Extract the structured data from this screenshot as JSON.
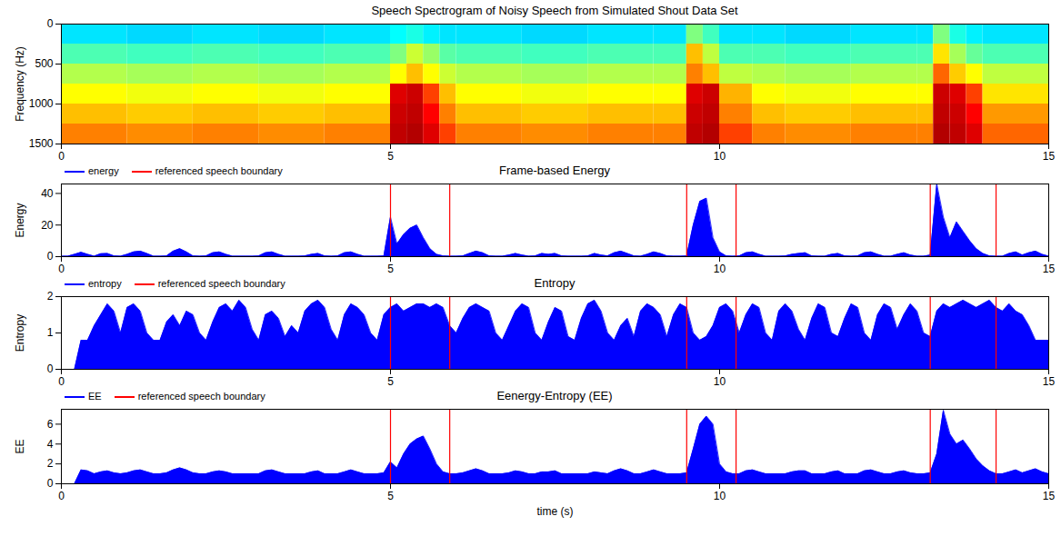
{
  "chart_data": [
    {
      "type": "heatmap",
      "title": "Speech Spectrogram of Noisy Speech from Simulated Shout Data Set",
      "ylabel": "Frequency (Hz)",
      "x": [
        0,
        1,
        2,
        3,
        4,
        5,
        5.25,
        5.5,
        5.75,
        6,
        7,
        8,
        9,
        9.5,
        9.75,
        10,
        10.5,
        11,
        12,
        13,
        13.25,
        13.5,
        13.75,
        14
      ],
      "y": [
        0,
        250,
        500,
        750,
        1000,
        1250
      ],
      "cells": [
        [
          3.8,
          3.7,
          3.8,
          3.7,
          3.8,
          4.0,
          4.2,
          3.9,
          3.8,
          3.8,
          3.7,
          3.8,
          3.8,
          5.0,
          4.5,
          3.8,
          3.8,
          3.7,
          3.8,
          3.8,
          5.0,
          4.2,
          3.9,
          3.8
        ],
        [
          4.6,
          4.5,
          4.6,
          4.5,
          4.6,
          5.0,
          5.6,
          5.2,
          4.7,
          4.6,
          4.5,
          4.6,
          4.6,
          6.5,
          5.5,
          4.6,
          4.6,
          4.5,
          4.6,
          4.6,
          6.2,
          5.3,
          4.8,
          4.6
        ],
        [
          5.4,
          5.3,
          5.4,
          5.3,
          5.4,
          6.0,
          6.5,
          6.0,
          5.6,
          5.4,
          5.3,
          5.4,
          5.4,
          7.0,
          6.5,
          5.5,
          5.4,
          5.3,
          5.4,
          5.4,
          7.2,
          6.4,
          6.0,
          5.5
        ],
        [
          6.0,
          5.9,
          6.0,
          5.9,
          6.0,
          8.5,
          8.8,
          7.5,
          6.5,
          6.0,
          5.9,
          6.0,
          6.0,
          8.5,
          8.8,
          6.6,
          6.0,
          5.9,
          6.0,
          6.0,
          8.8,
          8.5,
          7.5,
          6.2
        ],
        [
          6.5,
          6.4,
          6.5,
          6.4,
          6.5,
          8.8,
          9.0,
          8.0,
          7.0,
          6.5,
          6.4,
          6.5,
          6.5,
          8.8,
          9.0,
          7.0,
          6.5,
          6.4,
          6.5,
          6.5,
          9.0,
          8.8,
          8.0,
          6.8
        ],
        [
          7.0,
          6.9,
          7.0,
          6.9,
          7.0,
          9.0,
          9.2,
          8.5,
          7.5,
          7.0,
          6.9,
          7.0,
          7.0,
          9.0,
          9.2,
          7.5,
          7.0,
          6.9,
          7.0,
          7.0,
          9.2,
          9.0,
          8.5,
          7.2
        ]
      ],
      "clim": [
        0,
        10
      ],
      "xlim": [
        0,
        15
      ],
      "xticks": [
        0,
        5,
        10,
        15
      ],
      "ylim": [
        1500,
        0
      ],
      "yticks": [
        0,
        500,
        1000,
        1500
      ]
    },
    {
      "type": "area",
      "title": "Frame-based Energy",
      "ylabel": "Energy",
      "legend": "above",
      "x": [
        0,
        0.1,
        0.2,
        0.3,
        0.4,
        0.5,
        0.6,
        0.7,
        0.8,
        0.9,
        1,
        1.1,
        1.2,
        1.3,
        1.4,
        1.5,
        1.6,
        1.7,
        1.8,
        1.9,
        2,
        2.1,
        2.2,
        2.3,
        2.4,
        2.5,
        2.6,
        2.7,
        2.8,
        2.9,
        3,
        3.1,
        3.2,
        3.3,
        3.4,
        3.5,
        3.6,
        3.7,
        3.8,
        3.9,
        4,
        4.1,
        4.2,
        4.3,
        4.4,
        4.5,
        4.6,
        4.7,
        4.8,
        4.9,
        5,
        5.1,
        5.2,
        5.3,
        5.4,
        5.5,
        5.6,
        5.7,
        5.8,
        5.9,
        6,
        6.1,
        6.2,
        6.3,
        6.4,
        6.5,
        6.6,
        6.7,
        6.8,
        6.9,
        7,
        7.1,
        7.2,
        7.3,
        7.4,
        7.5,
        7.6,
        7.7,
        7.8,
        7.9,
        8,
        8.1,
        8.2,
        8.3,
        8.4,
        8.5,
        8.6,
        8.7,
        8.8,
        8.9,
        9,
        9.1,
        9.2,
        9.3,
        9.4,
        9.5,
        9.6,
        9.7,
        9.8,
        9.9,
        10,
        10.1,
        10.2,
        10.3,
        10.4,
        10.5,
        10.6,
        10.7,
        10.8,
        10.9,
        11,
        11.1,
        11.2,
        11.3,
        11.4,
        11.5,
        11.6,
        11.7,
        11.8,
        11.9,
        12,
        12.1,
        12.2,
        12.3,
        12.4,
        12.5,
        12.6,
        12.7,
        12.8,
        12.9,
        13,
        13.1,
        13.2,
        13.3,
        13.4,
        13.5,
        13.6,
        13.7,
        13.8,
        13.9,
        14,
        14.1,
        14.2,
        14.3,
        14.4,
        14.5,
        14.6,
        14.7,
        14.8,
        14.9,
        15
      ],
      "series": [
        {
          "name": "energy",
          "color": "#0000ff",
          "type": "area",
          "values": [
            0.3,
            0.3,
            1.5,
            2.8,
            1.5,
            0.3,
            1.8,
            2.0,
            0.5,
            0.3,
            1.5,
            3.0,
            3.5,
            2.0,
            0.3,
            0.3,
            0.5,
            3.5,
            5.0,
            3.0,
            0.5,
            0.3,
            0.5,
            2.5,
            3.0,
            1.5,
            0.3,
            0.3,
            0.3,
            0.3,
            0.5,
            2.5,
            3.0,
            1.5,
            0.3,
            0.3,
            0.3,
            0.5,
            1.5,
            2.0,
            0.5,
            0.3,
            0.5,
            2.5,
            3.0,
            1.5,
            0.3,
            0.3,
            0.3,
            0.5,
            25.0,
            8.0,
            14.0,
            18.0,
            20.0,
            12.0,
            5.0,
            1.5,
            0.5,
            0.3,
            0.3,
            0.5,
            2.0,
            3.5,
            2.5,
            0.5,
            0.3,
            0.3,
            1.0,
            2.0,
            1.0,
            0.3,
            0.5,
            2.0,
            1.5,
            2.0,
            0.5,
            0.3,
            0.3,
            0.3,
            0.5,
            2.0,
            1.0,
            0.5,
            2.5,
            3.5,
            2.0,
            0.5,
            0.3,
            1.5,
            3.0,
            2.0,
            0.5,
            0.3,
            0.3,
            0.5,
            20.0,
            35.0,
            37.0,
            12.0,
            3.0,
            0.5,
            0.3,
            0.5,
            2.5,
            3.0,
            1.5,
            0.3,
            0.3,
            0.3,
            0.5,
            1.5,
            2.0,
            2.5,
            0.5,
            0.3,
            0.3,
            1.5,
            2.0,
            0.5,
            0.3,
            0.5,
            2.5,
            3.0,
            1.5,
            0.3,
            0.3,
            1.5,
            2.5,
            1.0,
            0.3,
            0.3,
            1.0,
            46.0,
            25.0,
            12.0,
            22.0,
            16.0,
            10.0,
            5.0,
            2.0,
            0.5,
            0.3,
            0.3,
            2.0,
            3.0,
            1.0,
            2.5,
            3.5,
            1.5,
            0.3
          ]
        },
        {
          "name": "referenced speech boundary",
          "color": "#ff0000",
          "type": "rule",
          "x": [
            5.0,
            5.9,
            9.5,
            10.25,
            13.2,
            14.2
          ]
        }
      ],
      "xlim": [
        0,
        15
      ],
      "xticks": [
        0,
        5,
        10,
        15
      ],
      "ylim": [
        0,
        46
      ],
      "yticks": [
        0,
        20,
        40
      ]
    },
    {
      "type": "area",
      "title": "Entropy",
      "ylabel": "Entropy",
      "legend": "above",
      "x": [
        0,
        0.1,
        0.2,
        0.3,
        0.4,
        0.5,
        0.6,
        0.7,
        0.8,
        0.9,
        1,
        1.1,
        1.2,
        1.3,
        1.4,
        1.5,
        1.6,
        1.7,
        1.8,
        1.9,
        2,
        2.1,
        2.2,
        2.3,
        2.4,
        2.5,
        2.6,
        2.7,
        2.8,
        2.9,
        3,
        3.1,
        3.2,
        3.3,
        3.4,
        3.5,
        3.6,
        3.7,
        3.8,
        3.9,
        4,
        4.1,
        4.2,
        4.3,
        4.4,
        4.5,
        4.6,
        4.7,
        4.8,
        4.9,
        5,
        5.1,
        5.2,
        5.3,
        5.4,
        5.5,
        5.6,
        5.7,
        5.8,
        5.9,
        6,
        6.1,
        6.2,
        6.3,
        6.4,
        6.5,
        6.6,
        6.7,
        6.8,
        6.9,
        7,
        7.1,
        7.2,
        7.3,
        7.4,
        7.5,
        7.6,
        7.7,
        7.8,
        7.9,
        8,
        8.1,
        8.2,
        8.3,
        8.4,
        8.5,
        8.6,
        8.7,
        8.8,
        8.9,
        9,
        9.1,
        9.2,
        9.3,
        9.4,
        9.5,
        9.6,
        9.7,
        9.8,
        9.9,
        10,
        10.1,
        10.2,
        10.3,
        10.4,
        10.5,
        10.6,
        10.7,
        10.8,
        10.9,
        11,
        11.1,
        11.2,
        11.3,
        11.4,
        11.5,
        11.6,
        11.7,
        11.8,
        11.9,
        12,
        12.1,
        12.2,
        12.3,
        12.4,
        12.5,
        12.6,
        12.7,
        12.8,
        12.9,
        13,
        13.1,
        13.2,
        13.3,
        13.4,
        13.5,
        13.6,
        13.7,
        13.8,
        13.9,
        14,
        14.1,
        14.2,
        14.3,
        14.4,
        14.5,
        14.6,
        14.7,
        14.8,
        14.9,
        15
      ],
      "series": [
        {
          "name": "entropy",
          "color": "#0000ff",
          "type": "area",
          "values": [
            0,
            0,
            0,
            0.8,
            0.8,
            1.2,
            1.5,
            1.8,
            1.6,
            1.0,
            1.7,
            1.8,
            1.6,
            1.0,
            0.8,
            0.8,
            1.3,
            1.5,
            1.2,
            1.6,
            1.5,
            1.0,
            0.8,
            1.3,
            1.7,
            1.8,
            1.6,
            1.9,
            1.7,
            1.1,
            0.8,
            1.5,
            1.6,
            1.4,
            0.9,
            1.2,
            1.0,
            1.6,
            1.8,
            1.9,
            1.7,
            1.1,
            0.8,
            1.5,
            1.8,
            1.7,
            1.5,
            1.0,
            0.8,
            1.5,
            1.7,
            1.8,
            1.6,
            1.7,
            1.8,
            1.8,
            1.7,
            1.8,
            1.7,
            1.2,
            1.0,
            1.4,
            1.7,
            1.8,
            1.7,
            1.6,
            1.0,
            0.8,
            1.2,
            1.6,
            1.8,
            1.7,
            1.0,
            0.8,
            1.3,
            1.7,
            1.6,
            0.9,
            0.8,
            1.4,
            1.8,
            1.9,
            1.6,
            1.0,
            0.8,
            1.2,
            1.4,
            0.9,
            1.6,
            1.8,
            1.7,
            1.5,
            0.9,
            1.5,
            1.8,
            1.7,
            1.0,
            0.8,
            0.9,
            1.2,
            1.7,
            1.8,
            1.6,
            1.0,
            1.5,
            1.8,
            1.7,
            1.0,
            0.8,
            1.6,
            1.8,
            1.6,
            1.1,
            0.8,
            1.4,
            1.8,
            1.7,
            1.0,
            0.9,
            1.4,
            1.8,
            1.7,
            1.0,
            0.8,
            1.5,
            1.8,
            1.7,
            1.1,
            1.5,
            1.8,
            1.6,
            1.0,
            0.9,
            1.6,
            1.8,
            1.7,
            1.8,
            1.9,
            1.8,
            1.7,
            1.8,
            1.9,
            1.7,
            1.6,
            1.8,
            1.6,
            1.5,
            1.2,
            0.8,
            0.8,
            0.8
          ]
        },
        {
          "name": "referenced speech boundary",
          "color": "#ff0000",
          "type": "rule",
          "x": [
            5.0,
            5.9,
            9.5,
            10.25,
            13.2,
            14.2
          ]
        }
      ],
      "xlim": [
        0,
        15
      ],
      "xticks": [
        0,
        5,
        10,
        15
      ],
      "ylim": [
        0,
        2
      ],
      "yticks": [
        0,
        1,
        2
      ]
    },
    {
      "type": "area",
      "title": "Eenergy-Entropy (EE)",
      "ylabel": "EE",
      "xlabel": "time (s)",
      "legend": "above",
      "x": [
        0,
        0.1,
        0.2,
        0.3,
        0.4,
        0.5,
        0.6,
        0.7,
        0.8,
        0.9,
        1,
        1.1,
        1.2,
        1.3,
        1.4,
        1.5,
        1.6,
        1.7,
        1.8,
        1.9,
        2,
        2.1,
        2.2,
        2.3,
        2.4,
        2.5,
        2.6,
        2.7,
        2.8,
        2.9,
        3,
        3.1,
        3.2,
        3.3,
        3.4,
        3.5,
        3.6,
        3.7,
        3.8,
        3.9,
        4,
        4.1,
        4.2,
        4.3,
        4.4,
        4.5,
        4.6,
        4.7,
        4.8,
        4.9,
        5,
        5.1,
        5.2,
        5.3,
        5.4,
        5.5,
        5.6,
        5.7,
        5.8,
        5.9,
        6,
        6.1,
        6.2,
        6.3,
        6.4,
        6.5,
        6.6,
        6.7,
        6.8,
        6.9,
        7,
        7.1,
        7.2,
        7.3,
        7.4,
        7.5,
        7.6,
        7.7,
        7.8,
        7.9,
        8,
        8.1,
        8.2,
        8.3,
        8.4,
        8.5,
        8.6,
        8.7,
        8.8,
        8.9,
        9,
        9.1,
        9.2,
        9.3,
        9.4,
        9.5,
        9.6,
        9.7,
        9.8,
        9.9,
        10,
        10.1,
        10.2,
        10.3,
        10.4,
        10.5,
        10.6,
        10.7,
        10.8,
        10.9,
        11,
        11.1,
        11.2,
        11.3,
        11.4,
        11.5,
        11.6,
        11.7,
        11.8,
        11.9,
        12,
        12.1,
        12.2,
        12.3,
        12.4,
        12.5,
        12.6,
        12.7,
        12.8,
        12.9,
        13,
        13.1,
        13.2,
        13.3,
        13.4,
        13.5,
        13.6,
        13.7,
        13.8,
        13.9,
        14,
        14.1,
        14.2,
        14.3,
        14.4,
        14.5,
        14.6,
        14.7,
        14.8,
        14.9,
        15
      ],
      "series": [
        {
          "name": "EE",
          "color": "#0000ff",
          "type": "area",
          "values": [
            0,
            0,
            0,
            1.4,
            1.3,
            1.0,
            1.2,
            1.3,
            1.1,
            1.0,
            1.1,
            1.3,
            1.4,
            1.2,
            1.0,
            1.0,
            1.1,
            1.4,
            1.6,
            1.4,
            1.1,
            1.0,
            1.0,
            1.2,
            1.3,
            1.2,
            1.0,
            1.0,
            1.0,
            1.0,
            1.0,
            1.3,
            1.4,
            1.2,
            1.0,
            1.0,
            1.0,
            1.0,
            1.2,
            1.3,
            1.0,
            1.0,
            1.0,
            1.2,
            1.4,
            1.2,
            1.0,
            1.0,
            1.0,
            1.1,
            2.2,
            1.6,
            3.0,
            4.0,
            4.5,
            4.8,
            3.5,
            2.0,
            1.2,
            1.0,
            1.0,
            1.1,
            1.3,
            1.5,
            1.3,
            1.0,
            1.0,
            1.0,
            1.1,
            1.3,
            1.2,
            1.0,
            1.0,
            1.2,
            1.2,
            1.3,
            1.0,
            1.0,
            1.0,
            1.0,
            1.0,
            1.2,
            1.1,
            1.0,
            1.3,
            1.5,
            1.3,
            1.0,
            1.0,
            1.2,
            1.4,
            1.2,
            1.0,
            1.0,
            1.0,
            1.1,
            3.5,
            6.0,
            6.8,
            6.0,
            2.0,
            1.2,
            1.0,
            1.0,
            1.3,
            1.4,
            1.2,
            1.0,
            1.0,
            1.0,
            1.0,
            1.2,
            1.3,
            1.3,
            1.0,
            1.0,
            1.0,
            1.2,
            1.3,
            1.0,
            1.0,
            1.0,
            1.3,
            1.4,
            1.2,
            1.0,
            1.0,
            1.2,
            1.3,
            1.1,
            1.0,
            1.0,
            1.1,
            3.0,
            7.4,
            5.0,
            4.0,
            4.4,
            3.5,
            2.5,
            1.8,
            1.3,
            1.0,
            1.0,
            1.2,
            1.4,
            1.1,
            1.3,
            1.5,
            1.2,
            1.0
          ]
        },
        {
          "name": "referenced speech boundary",
          "color": "#ff0000",
          "type": "rule",
          "x": [
            5.0,
            5.9,
            9.5,
            10.25,
            13.2,
            14.2
          ]
        }
      ],
      "xlim": [
        0,
        15
      ],
      "xticks": [
        0,
        5,
        10,
        15
      ],
      "ylim": [
        0,
        7.5
      ],
      "yticks": [
        0,
        2,
        4,
        6
      ]
    }
  ]
}
